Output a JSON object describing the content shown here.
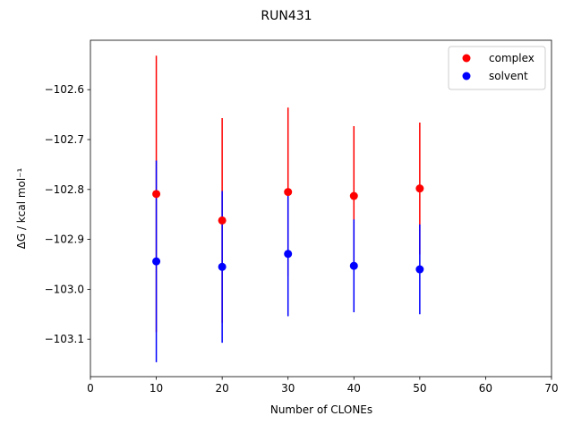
{
  "chart_data": {
    "type": "errorbar-scatter",
    "title": "RUN431",
    "x_label": "Number of CLONEs",
    "y_label": "ΔG / kcal mol⁻¹",
    "xlim": [
      0,
      70
    ],
    "xticks": [
      0,
      10,
      20,
      30,
      40,
      50,
      60,
      70
    ],
    "ylim": [
      -103.175,
      -102.501
    ],
    "yticks": [
      {
        "value": -103.1,
        "label": "−103.1"
      },
      {
        "value": -103.0,
        "label": "−103.0"
      },
      {
        "value": -102.9,
        "label": "−102.9"
      },
      {
        "value": -102.8,
        "label": "−102.8"
      },
      {
        "value": -102.7,
        "label": "−102.7"
      },
      {
        "value": -102.6,
        "label": "−102.6"
      }
    ],
    "legend": "upper right",
    "series": [
      {
        "name": "complex",
        "color": "#ff0000",
        "x": [
          10,
          20,
          30,
          40,
          50
        ],
        "values": [
          -102.809,
          -102.862,
          -102.805,
          -102.813,
          -102.798
        ],
        "errors": [
          0.277,
          0.205,
          0.169,
          0.14,
          0.132
        ]
      },
      {
        "name": "solvent",
        "color": "#0000ff",
        "x": [
          10,
          20,
          30,
          40,
          50
        ],
        "values": [
          -102.944,
          -102.955,
          -102.929,
          -102.953,
          -102.96
        ],
        "errors": [
          0.202,
          0.152,
          0.125,
          0.093,
          0.09
        ]
      }
    ]
  }
}
